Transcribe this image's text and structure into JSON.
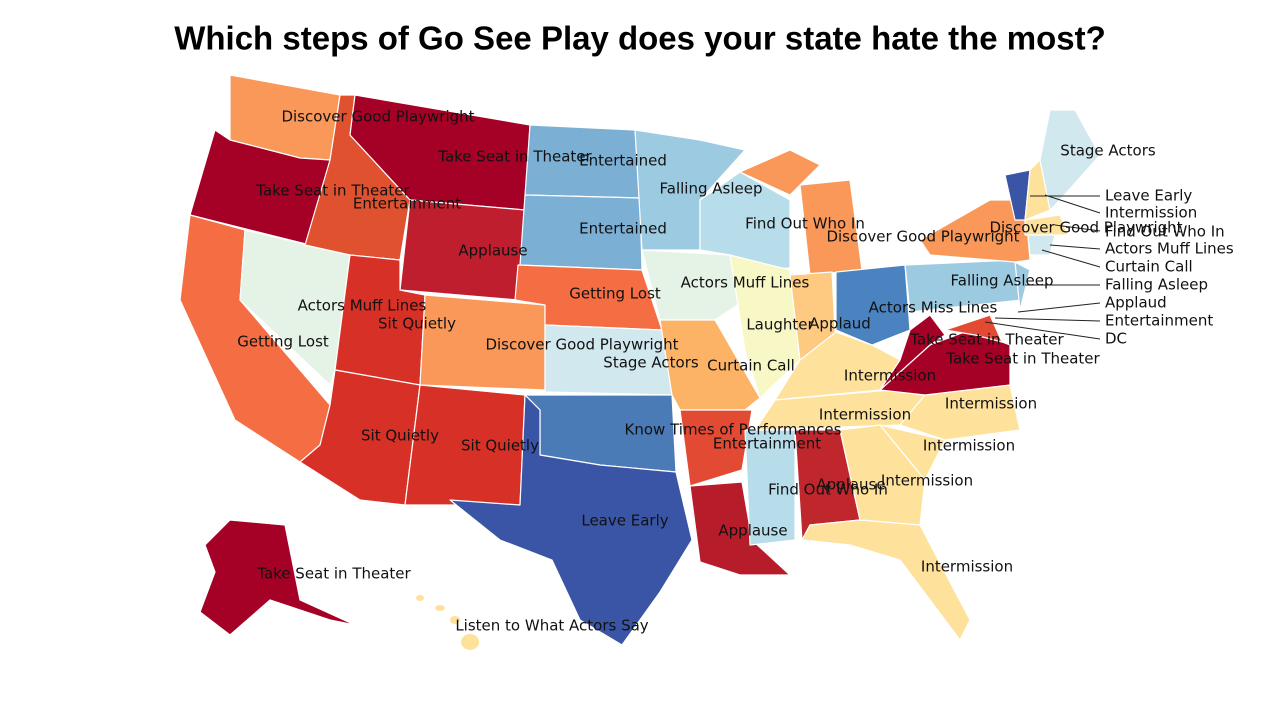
{
  "title": "Which steps of Go See Play does your state hate the most?",
  "labels": [
    "Discover Good Playwright",
    "Take Seat in Theater",
    "Entertained",
    "Falling Asleep",
    "Stage Actors",
    "Take Seat in Theater",
    "Entertainment",
    "Find Out Who In",
    "Entertained",
    "Discover Good Playwright",
    "Discover Good Playwright",
    "Applause",
    "Actors Muff Lines",
    "Falling Asleep",
    "Getting Lost",
    "Actors Muff Lines",
    "Actors Miss Lines",
    "Sit Quietly",
    "Laughter",
    "Applaud",
    "Getting Lost",
    "Discover Good Playwright",
    "Take Seat in Theater",
    "Take Seat in Theater",
    "Stage Actors",
    "Curtain Call",
    "Intermission",
    "Intermission",
    "Intermission",
    "Know Times of Performances",
    "Sit Quietly",
    "Sit Quietly",
    "Entertainment",
    "Intermission",
    "Intermission",
    "Applause",
    "Find Out Who In",
    "Leave Early",
    "Applause",
    "Take Seat in Theater",
    "Intermission",
    "Listen to What Actors Say",
    "Leave Early",
    "Intermission",
    "Find Out Who In",
    "Actors Muff Lines",
    "Curtain Call",
    "Falling Asleep",
    "Applaud",
    "Entertainment",
    "DC"
  ]
}
